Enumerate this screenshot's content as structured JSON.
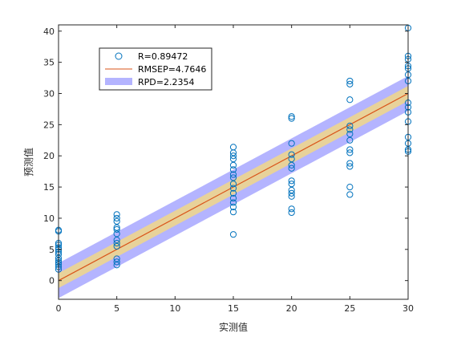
{
  "chart_data": {
    "type": "scatter",
    "title": "",
    "xlabel": "实测值",
    "ylabel": "预测值",
    "xlim": [
      0,
      30
    ],
    "ylim": [
      -3,
      41
    ],
    "xticks": [
      0,
      5,
      10,
      15,
      20,
      25,
      30
    ],
    "yticks": [
      0,
      5,
      10,
      15,
      20,
      25,
      30,
      35,
      40
    ],
    "grid": false,
    "legend_position": "top-left",
    "legend": [
      "R=0.89472",
      "RMSEP=4.7646",
      "RPD=2.2354"
    ],
    "colors": {
      "points": "#0072BD",
      "fit_line": "#D95319",
      "band_inner": "#E8D29A",
      "band_outer": "#B4B4FF"
    },
    "fit_line": {
      "x": [
        0,
        30
      ],
      "y": [
        0,
        30
      ]
    },
    "band_half_width": 2.8,
    "inner_band_half_width": 1.2,
    "series": [
      {
        "name": "",
        "marker": "circle",
        "points": [
          [
            0,
            1.8
          ],
          [
            0,
            2.2
          ],
          [
            0,
            2.6
          ],
          [
            0,
            2.9
          ],
          [
            0,
            3.2
          ],
          [
            0,
            3.6
          ],
          [
            0,
            4.2
          ],
          [
            0,
            4.6
          ],
          [
            0,
            5.0
          ],
          [
            0,
            5.3
          ],
          [
            0,
            5.7
          ],
          [
            0,
            6.0
          ],
          [
            0,
            7.9
          ],
          [
            0,
            8.1
          ],
          [
            5,
            2.5
          ],
          [
            5,
            3.0
          ],
          [
            5,
            3.5
          ],
          [
            5,
            5.5
          ],
          [
            5,
            6.0
          ],
          [
            5,
            6.5
          ],
          [
            5,
            7.5
          ],
          [
            5,
            8.2
          ],
          [
            5,
            8.5
          ],
          [
            5,
            9.5
          ],
          [
            5,
            10.0
          ],
          [
            5,
            10.6
          ],
          [
            15,
            7.4
          ],
          [
            15,
            11.0
          ],
          [
            15,
            11.8
          ],
          [
            15,
            12.5
          ],
          [
            15,
            13.2
          ],
          [
            15,
            14.0
          ],
          [
            15,
            14.8
          ],
          [
            15,
            15.5
          ],
          [
            15,
            16.5
          ],
          [
            15,
            17.0
          ],
          [
            15,
            17.8
          ],
          [
            15,
            18.5
          ],
          [
            15,
            19.5
          ],
          [
            15,
            20.0
          ],
          [
            15,
            20.5
          ],
          [
            15,
            21.4
          ],
          [
            20,
            10.9
          ],
          [
            20,
            11.5
          ],
          [
            20,
            13.5
          ],
          [
            20,
            14.0
          ],
          [
            20,
            14.5
          ],
          [
            20,
            15.5
          ],
          [
            20,
            16.0
          ],
          [
            20,
            18.0
          ],
          [
            20,
            18.5
          ],
          [
            20,
            19.5
          ],
          [
            20,
            20.2
          ],
          [
            20,
            22.0
          ],
          [
            20,
            26.0
          ],
          [
            20,
            26.3
          ],
          [
            25,
            13.8
          ],
          [
            25,
            15.0
          ],
          [
            25,
            18.3
          ],
          [
            25,
            18.8
          ],
          [
            25,
            20.5
          ],
          [
            25,
            21.0
          ],
          [
            25,
            22.5
          ],
          [
            25,
            23.5
          ],
          [
            25,
            24.2
          ],
          [
            25,
            24.8
          ],
          [
            25,
            29.0
          ],
          [
            25,
            31.5
          ],
          [
            25,
            32.0
          ],
          [
            30,
            20.7
          ],
          [
            30,
            21.0
          ],
          [
            30,
            22.0
          ],
          [
            30,
            23.0
          ],
          [
            30,
            25.5
          ],
          [
            30,
            27.0
          ],
          [
            30,
            27.8
          ],
          [
            30,
            28.5
          ],
          [
            30,
            32.0
          ],
          [
            30,
            33.0
          ],
          [
            30,
            34.0
          ],
          [
            30,
            34.4
          ],
          [
            30,
            35.5
          ],
          [
            30,
            36.0
          ],
          [
            30,
            40.5
          ]
        ]
      }
    ]
  }
}
